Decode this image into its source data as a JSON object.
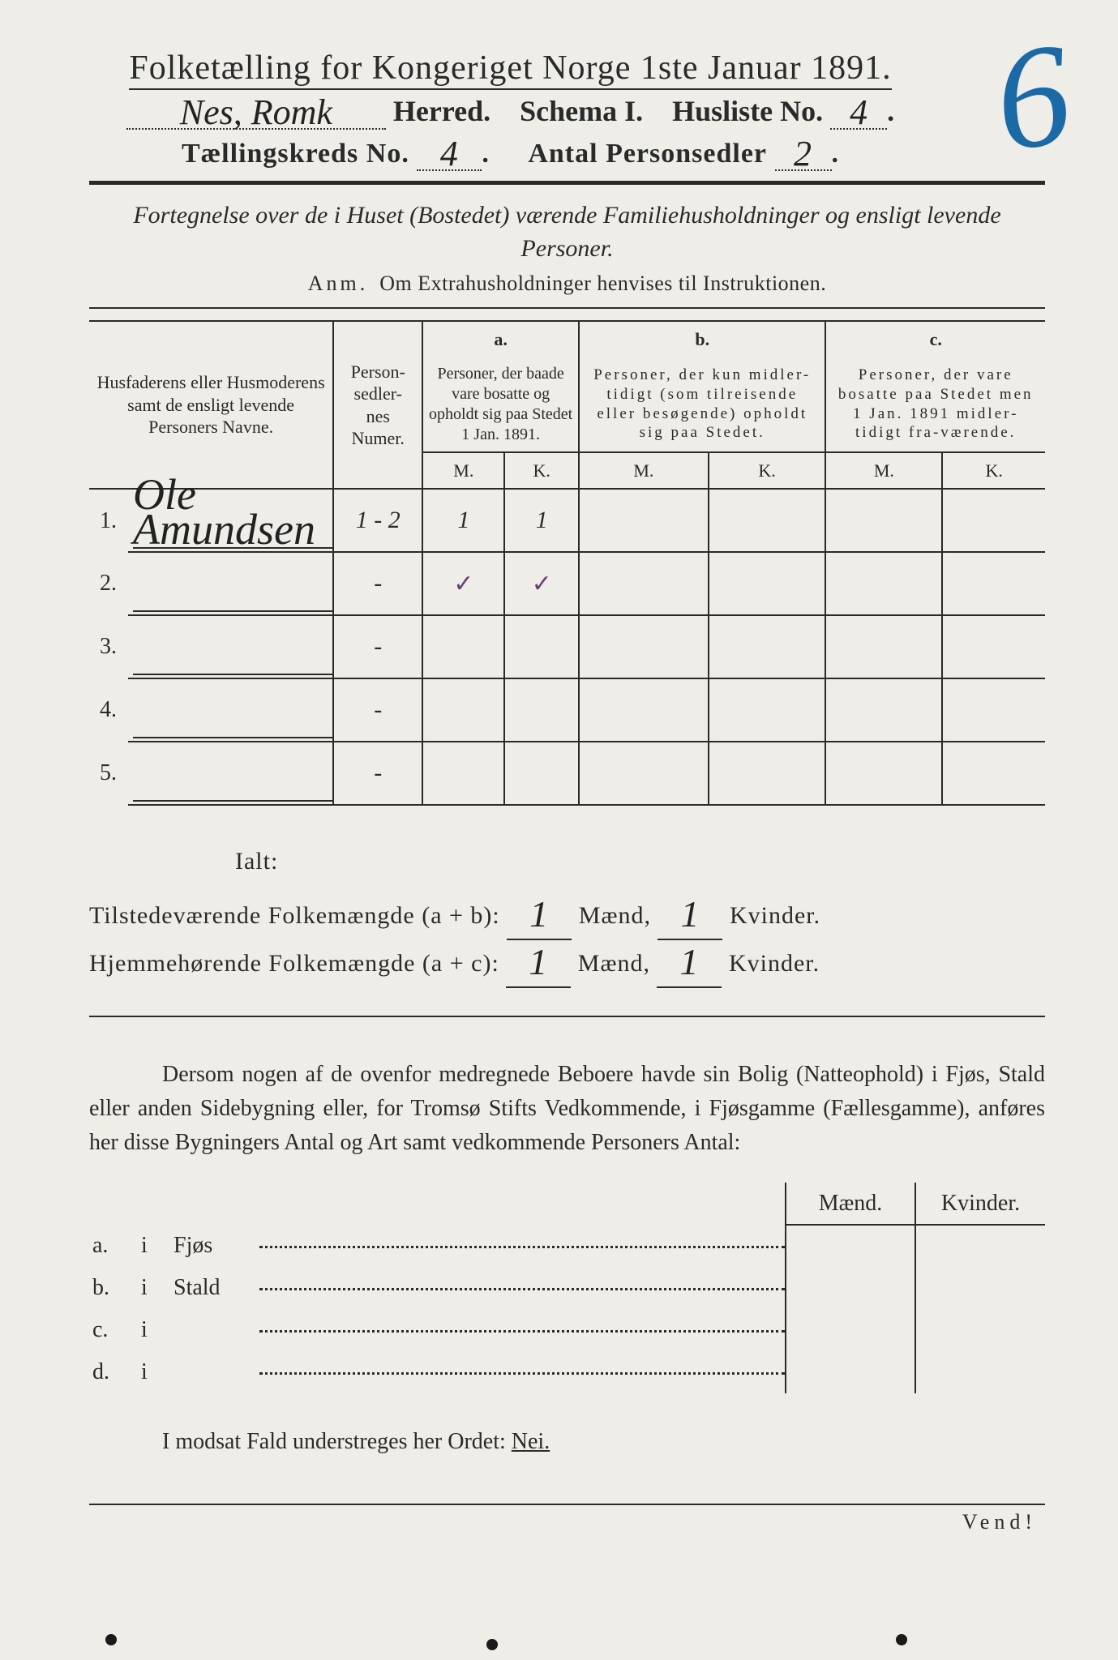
{
  "colors": {
    "paper": "#eeede7",
    "ink": "#2a2a2a",
    "blue_pencil": "#1a6aa8",
    "purple_tick": "#6a3f7a"
  },
  "page_number_annotation": "6",
  "header": {
    "title": "Folketælling for Kongeriget Norge 1ste Januar 1891.",
    "herred_value": "Nes, Romk",
    "herred_label": "Herred.",
    "schema_label": "Schema I.",
    "husliste_label": "Husliste No.",
    "husliste_value": "4",
    "kreds_label": "Tællingskreds No.",
    "kreds_value": "4",
    "sedler_label": "Antal Personsedler",
    "sedler_value": "2"
  },
  "intro": "Fortegnelse over de i Huset (Bostedet) værende Familiehusholdninger og ensligt levende Personer.",
  "anm_prefix": "Anm.",
  "anm_text": "Om Extrahusholdninger henvises til Instruktionen.",
  "columns": {
    "name": "Husfaderens eller Husmoderens samt de ensligt levende Personers Navne.",
    "numer": "Person-\nsedler-\nnes\nNumer.",
    "a_label": "a.",
    "a_text": "Personer, der baade vare bosatte og opholdt sig paa Stedet 1 Jan. 1891.",
    "b_label": "b.",
    "b_text": "Personer, der kun midler-tidigt (som tilreisende eller besøgende) opholdt sig paa Stedet.",
    "c_label": "c.",
    "c_text": "Personer, der vare bosatte paa Stedet men 1 Jan. 1891 midler-tidigt fra-værende.",
    "M": "M.",
    "K": "K."
  },
  "rows": [
    {
      "n": "1.",
      "name": "Ole Amundsen",
      "numer": "1 - 2",
      "aM": "1",
      "aK": "1",
      "bM": "",
      "bK": "",
      "cM": "",
      "cK": ""
    },
    {
      "n": "2.",
      "name": "",
      "numer": "-",
      "aM": "✓",
      "aK": "✓",
      "bM": "",
      "bK": "",
      "cM": "",
      "cK": ""
    },
    {
      "n": "3.",
      "name": "",
      "numer": "-",
      "aM": "",
      "aK": "",
      "bM": "",
      "bK": "",
      "cM": "",
      "cK": ""
    },
    {
      "n": "4.",
      "name": "",
      "numer": "-",
      "aM": "",
      "aK": "",
      "bM": "",
      "bK": "",
      "cM": "",
      "cK": ""
    },
    {
      "n": "5.",
      "name": "",
      "numer": "-",
      "aM": "",
      "aK": "",
      "bM": "",
      "bK": "",
      "cM": "",
      "cK": ""
    }
  ],
  "totals": {
    "ialt": "Ialt:",
    "line1_label": "Tilstedeværende Folkemængde (a + b):",
    "line2_label": "Hjemmehørende Folkemængde (a + c):",
    "maend": "Mænd,",
    "kvinder": "Kvinder.",
    "v1m": "1",
    "v1k": "1",
    "v2m": "1",
    "v2k": "1"
  },
  "paragraph": "Dersom nogen af de ovenfor medregnede Beboere havde sin Bolig (Natteophold) i Fjøs, Stald eller anden Sidebygning eller, for Tromsø Stifts Vedkommende, i Fjøsgamme (Fællesgamme), anføres her disse Bygningers Antal og Art samt vedkommende Personers Antal:",
  "bottom": {
    "head_m": "Mænd.",
    "head_k": "Kvinder.",
    "rows": [
      {
        "k": "a.",
        "i": "i",
        "label": "Fjøs"
      },
      {
        "k": "b.",
        "i": "i",
        "label": "Stald"
      },
      {
        "k": "c.",
        "i": "i",
        "label": ""
      },
      {
        "k": "d.",
        "i": "i",
        "label": ""
      }
    ]
  },
  "nei_line_prefix": "I modsat Fald understreges her Ordet:",
  "nei_word": "Nei.",
  "vend": "Vend!"
}
